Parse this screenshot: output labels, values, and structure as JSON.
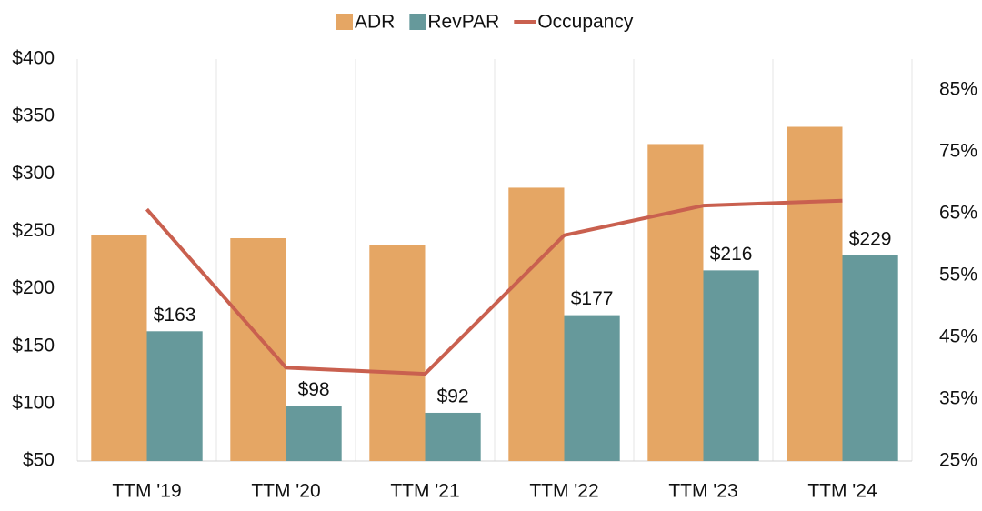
{
  "chart_data": {
    "type": "bar-line",
    "categories": [
      "TTM '19",
      "TTM '20",
      "TTM '21",
      "TTM '22",
      "TTM '23",
      "TTM '24"
    ],
    "series": [
      {
        "name": "ADR",
        "color": "#e5a664",
        "type": "bar",
        "values": [
          247,
          244,
          238,
          288,
          326,
          341
        ]
      },
      {
        "name": "RevPAR",
        "color": "#66999b",
        "type": "bar",
        "values": [
          163,
          98,
          92,
          177,
          216,
          229
        ],
        "value_labels": [
          "$163",
          "$98",
          "$92",
          "$177",
          "$216",
          "$229"
        ]
      },
      {
        "name": "Occupancy",
        "color": "#c9604f",
        "type": "line",
        "axis": "y2",
        "values": [
          65.7,
          40.1,
          39.1,
          61.5,
          66.3,
          67.1
        ]
      }
    ],
    "ylim": [
      50,
      400
    ],
    "yticks": [
      {
        "value": 50,
        "label": "$50"
      },
      {
        "value": 100,
        "label": "$100"
      },
      {
        "value": 150,
        "label": "$150"
      },
      {
        "value": 200,
        "label": "$200"
      },
      {
        "value": 250,
        "label": "$250"
      },
      {
        "value": 300,
        "label": "$300"
      },
      {
        "value": 350,
        "label": "$350"
      },
      {
        "value": 400,
        "label": "$400"
      }
    ],
    "y2lim": [
      25,
      90
    ],
    "y2ticks": [
      {
        "value": 25,
        "label": "25%"
      },
      {
        "value": 35,
        "label": "35%"
      },
      {
        "value": 45,
        "label": "45%"
      },
      {
        "value": 55,
        "label": "55%"
      },
      {
        "value": 65,
        "label": "65%"
      },
      {
        "value": 75,
        "label": "75%"
      },
      {
        "value": 85,
        "label": "85%"
      }
    ],
    "grid": true,
    "legend": "top"
  }
}
